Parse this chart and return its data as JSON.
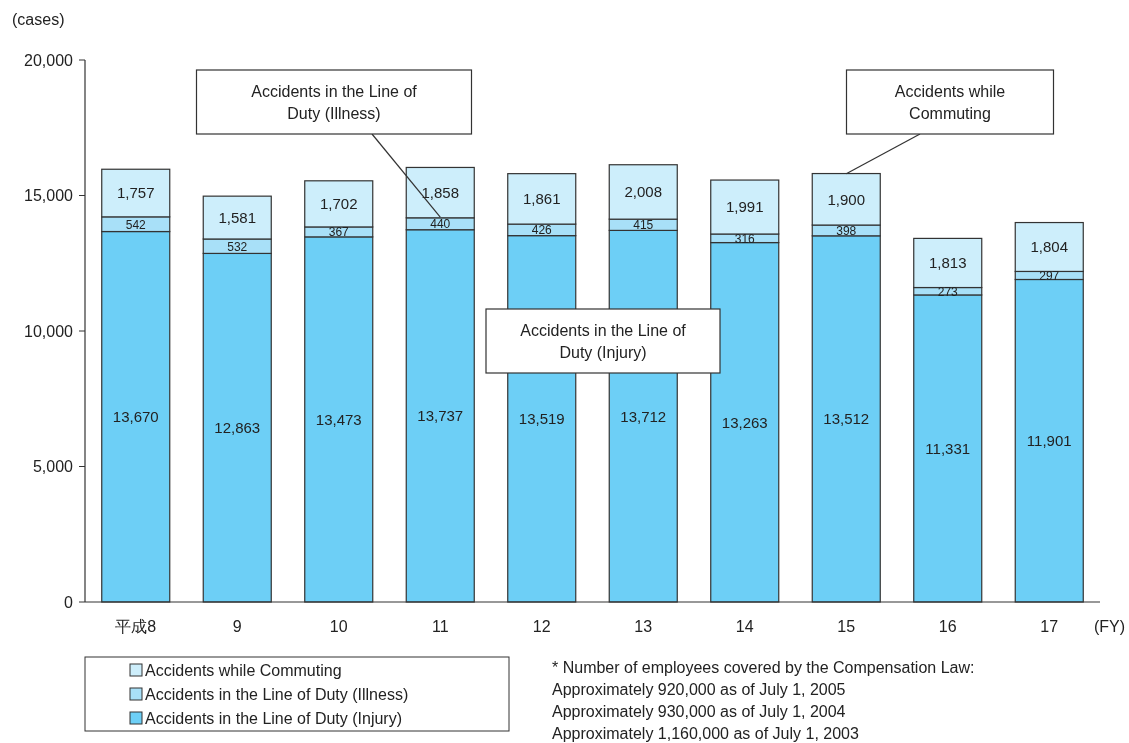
{
  "chart_data": {
    "type": "bar",
    "stacked": true,
    "ylabel": "(cases)",
    "xlabel": "(FY)",
    "categories": [
      "平成8",
      "9",
      "10",
      "11",
      "12",
      "13",
      "14",
      "15",
      "16",
      "17"
    ],
    "series": [
      {
        "name": "Accidents in the Line of Duty (Injury)",
        "color": "#6dcff6",
        "values": [
          13670,
          12863,
          13473,
          13737,
          13519,
          13712,
          13263,
          13512,
          11331,
          11901
        ],
        "value_labels": [
          "13,670",
          "12,863",
          "13,473",
          "13,737",
          "13,519",
          "13,712",
          "13,263",
          "13,512",
          "11,331",
          "11,901"
        ]
      },
      {
        "name": "Accidents in the Line of Duty (Illness)",
        "color": "#a8e0f8",
        "values": [
          542,
          532,
          367,
          440,
          426,
          415,
          316,
          398,
          273,
          297
        ],
        "value_labels": [
          "542",
          "532",
          "367",
          "440",
          "426",
          "415",
          "316",
          "398",
          "273",
          "297"
        ]
      },
      {
        "name": "Accidents while Commuting",
        "color": "#cdeefb",
        "values": [
          1757,
          1581,
          1702,
          1858,
          1861,
          2008,
          1991,
          1900,
          1813,
          1804
        ],
        "value_labels": [
          "1,757",
          "1,581",
          "1,702",
          "1,858",
          "1,861",
          "2,008",
          "1,991",
          "1,900",
          "1,813",
          "1,804"
        ]
      }
    ],
    "ylim": [
      0,
      20000
    ],
    "yticks": [
      {
        "value": 0,
        "label": "0"
      },
      {
        "value": 5000,
        "label": "5,000"
      },
      {
        "value": 10000,
        "label": "10,000"
      },
      {
        "value": 15000,
        "label": "15,000"
      },
      {
        "value": 20000,
        "label": "20,000"
      }
    ],
    "grid": false,
    "legend": "bottom left",
    "annotations": [
      {
        "text": "Accidents in the Line of Duty (Illness)",
        "x": "11",
        "y": 14200
      },
      {
        "text": "Accidents while Commuting",
        "x": "15",
        "y": 15800
      },
      "Accidents in the Line of Duty (Injury)",
      "* Number of employees covered by the Compensation Law:",
      "Approximately 920,000 as of July 1, 2005",
      "Approximately 930,000 as of July 1, 2004",
      "Approximately 1,160,000 as of July 1, 2003"
    ]
  }
}
